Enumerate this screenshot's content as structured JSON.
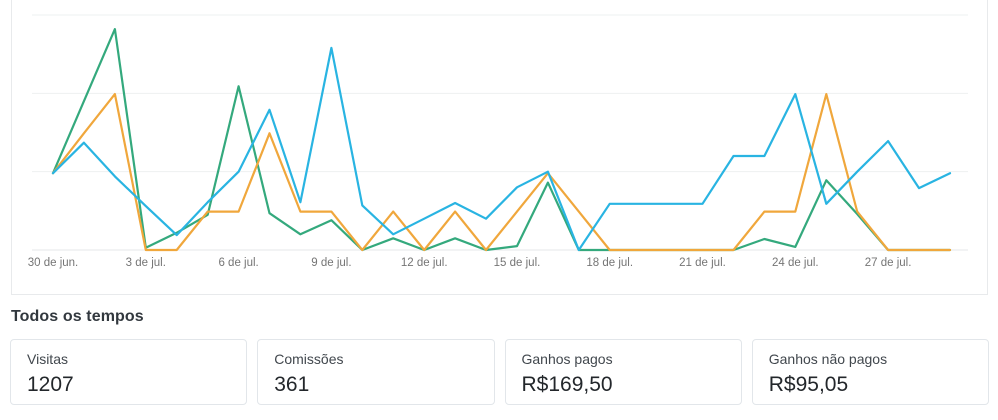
{
  "chart_data": {
    "type": "line",
    "x": [
      "30 de jun.",
      "1 de jul.",
      "2 de jul.",
      "3 de jul.",
      "4 de jul.",
      "5 de jul.",
      "6 de jul.",
      "7 de jul.",
      "8 de jul.",
      "9 de jul.",
      "10 de jul.",
      "11 de jul.",
      "12 de jul.",
      "13 de jul.",
      "14 de jul.",
      "15 de jul.",
      "16 de jul.",
      "17 de jul.",
      "18 de jul.",
      "19 de jul.",
      "20 de jul.",
      "21 de jul.",
      "22 de jul.",
      "23 de jul.",
      "24 de jul.",
      "25 de jul.",
      "26 de jul.",
      "27 de jul.",
      "28 de jul.",
      "29 de jul."
    ],
    "tick_labels": [
      "30 de jun.",
      "3 de jul.",
      "6 de jul.",
      "9 de jul.",
      "12 de jul.",
      "15 de jul.",
      "18 de jul.",
      "21 de jul.",
      "24 de jul.",
      "27 de jul."
    ],
    "tick_indices": [
      0,
      3,
      6,
      9,
      12,
      15,
      18,
      21,
      24,
      27
    ],
    "series": [
      {
        "name": "green-series",
        "color": "#34a97d",
        "values": [
          0.98,
          1.9,
          2.82,
          0.03,
          0.22,
          0.45,
          2.09,
          0.47,
          0.2,
          0.38,
          0,
          0.15,
          0,
          0.15,
          0,
          0.05,
          0.86,
          0,
          0,
          0,
          0,
          0,
          0,
          0.14,
          0.04,
          0.89,
          0.46,
          0,
          0,
          0
        ]
      },
      {
        "name": "orange-series",
        "color": "#f0a73c",
        "values": [
          0.98,
          1.49,
          1.99,
          0,
          0,
          0.49,
          0.49,
          1.49,
          0.49,
          0.49,
          0,
          0.49,
          0,
          0.49,
          0,
          0.49,
          0.98,
          0.49,
          0,
          0,
          0,
          0,
          0,
          0.49,
          0.49,
          1.99,
          0.49,
          0,
          0,
          0
        ]
      },
      {
        "name": "blue-series",
        "color": "#29b4e2",
        "values": [
          0.98,
          1.37,
          0.94,
          0.56,
          0.19,
          0.61,
          1.0,
          1.79,
          0.61,
          2.58,
          0.57,
          0.2,
          0.4,
          0.6,
          0.4,
          0.8,
          1.0,
          0,
          0.59,
          0.59,
          0.59,
          0.59,
          1.2,
          1.2,
          1.99,
          0.59,
          1.0,
          1.39,
          0.79,
          0.98
        ]
      }
    ],
    "title": "",
    "xlabel": "",
    "ylabel": "",
    "ylim": [
      0,
      3
    ],
    "grid": true,
    "legend": "none",
    "note_scale": "y-axis unlabeled; values in gridline units (1 unit per horizontal gridline, baseline = 0)"
  },
  "colors": {
    "green_line": "#34a97d",
    "orange_line": "#f0a73c",
    "blue_line": "#29b4e2",
    "gridline": "#eef0f1",
    "axis_baseline": "#e4e7e9",
    "panel_border": "#e8eaec",
    "tick_text": "#757575"
  },
  "summary": {
    "heading": "Todos os tempos",
    "cards": [
      {
        "label": "Visitas",
        "value": "1207"
      },
      {
        "label": "Comissões",
        "value": "361"
      },
      {
        "label": "Ganhos pagos",
        "value": "R$169,50"
      },
      {
        "label": "Ganhos não pagos",
        "value": "R$95,05"
      }
    ]
  }
}
